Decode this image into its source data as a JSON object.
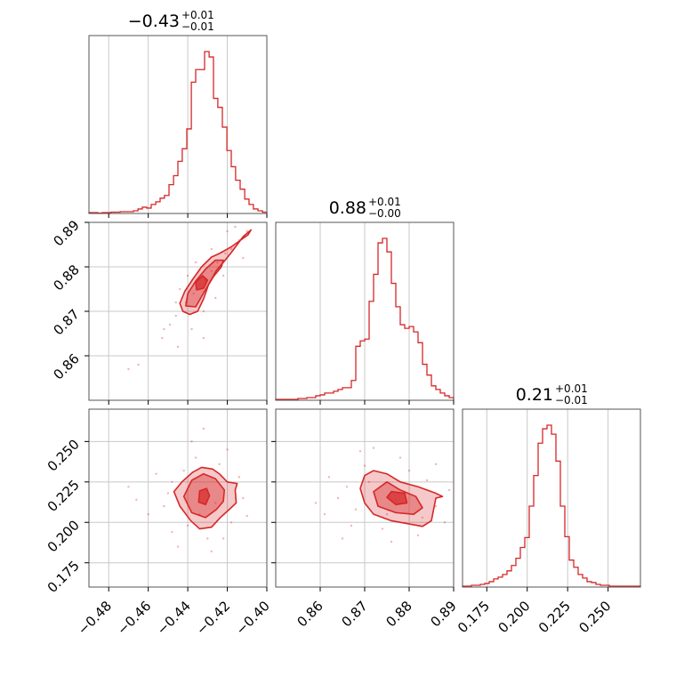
{
  "chart_data": {
    "type": "corner",
    "color": "#d62728",
    "grid": true,
    "parameters": [
      {
        "title_value": "−0.43",
        "title_plus": "+0.01",
        "title_minus": "−0.01",
        "range": [
          -0.49,
          -0.4
        ],
        "ticks": [
          -0.48,
          -0.46,
          -0.44,
          -0.42,
          -0.4
        ],
        "tick_labels": [
          "−0.48",
          "−0.46",
          "−0.44",
          "−0.42",
          "−0.40"
        ],
        "hist_edges": [
          -0.49,
          -0.4878,
          -0.4855,
          -0.4832,
          -0.481,
          -0.4788,
          -0.4765,
          -0.4742,
          -0.472,
          -0.4698,
          -0.4675,
          -0.4652,
          -0.463,
          -0.4608,
          -0.4585,
          -0.4562,
          -0.454,
          -0.4518,
          -0.4495,
          -0.4472,
          -0.445,
          -0.4428,
          -0.4405,
          -0.4382,
          -0.436,
          -0.4338,
          -0.4315,
          -0.4292,
          -0.427,
          -0.4248,
          -0.4225,
          -0.4202,
          -0.418,
          -0.4158,
          -0.4135,
          -0.4112,
          -0.409,
          -0.4068,
          -0.4045,
          -0.4022,
          -0.4
        ],
        "hist_counts": [
          1,
          1,
          0.5,
          1,
          1,
          1.5,
          1.5,
          2,
          2,
          2,
          3,
          5,
          7,
          6,
          10,
          13,
          17,
          20,
          32,
          42,
          58,
          72,
          94,
          146,
          160,
          160,
          180,
          174,
          128,
          118,
          96,
          70,
          52,
          37,
          27,
          16,
          10,
          5,
          3,
          1.5
        ]
      },
      {
        "title_value": "0.88",
        "title_plus": "+0.01",
        "title_minus": "−0.00",
        "range": [
          0.85,
          0.89
        ],
        "ticks": [
          0.86,
          0.87,
          0.88,
          0.89
        ],
        "tick_labels": [
          "0.86",
          "0.87",
          "0.88",
          "0.89"
        ],
        "hist_edges": [
          0.85,
          0.851,
          0.852,
          0.853,
          0.854,
          0.855,
          0.856,
          0.857,
          0.858,
          0.859,
          0.86,
          0.861,
          0.862,
          0.863,
          0.864,
          0.865,
          0.866,
          0.867,
          0.868,
          0.869,
          0.87,
          0.871,
          0.872,
          0.873,
          0.874,
          0.875,
          0.876,
          0.877,
          0.878,
          0.879,
          0.88,
          0.881,
          0.882,
          0.883,
          0.884,
          0.885,
          0.886,
          0.887,
          0.888,
          0.889,
          0.89
        ],
        "hist_counts": [
          1,
          1,
          1,
          1,
          1,
          2,
          2,
          3,
          3,
          5,
          6,
          8,
          8,
          10,
          12,
          14,
          14,
          22,
          60,
          66,
          68,
          110,
          140,
          175,
          180,
          165,
          130,
          104,
          84,
          80,
          82,
          76,
          64,
          40,
          28,
          16,
          12,
          8,
          5,
          3
        ]
      },
      {
        "title_value": "0.21",
        "title_plus": "+0.01",
        "title_minus": "−0.01",
        "range": [
          0.16,
          0.27
        ],
        "ticks": [
          0.175,
          0.2,
          0.225,
          0.25
        ],
        "tick_labels": [
          "0.175",
          "0.200",
          "0.225",
          "0.250"
        ],
        "hist_edges": [
          0.16,
          0.16275,
          0.1655,
          0.16825,
          0.171,
          0.17375,
          0.1765,
          0.17925,
          0.182,
          0.18475,
          0.1875,
          0.19025,
          0.193,
          0.19575,
          0.1985,
          0.20125,
          0.204,
          0.20675,
          0.2095,
          0.21225,
          0.215,
          0.21775,
          0.2205,
          0.22325,
          0.226,
          0.22875,
          0.2315,
          0.23425,
          0.237,
          0.23975,
          0.2425,
          0.24525,
          0.248,
          0.25075,
          0.2535,
          0.25625,
          0.259,
          0.26175,
          0.2645,
          0.26725,
          0.27
        ],
        "hist_counts": [
          1,
          1,
          2,
          2,
          3,
          4,
          6,
          9,
          11,
          14,
          18,
          24,
          32,
          44,
          55,
          90,
          124,
          160,
          176,
          180,
          170,
          140,
          90,
          56,
          30,
          22,
          14,
          10,
          6,
          5,
          3,
          2,
          2,
          1,
          1,
          1,
          1,
          1,
          1,
          1
        ]
      }
    ],
    "pairs": [
      {
        "x_param": 0,
        "y_param": 1,
        "contours": [
          [
            [
              -0.4425,
              0.87
            ],
            [
              -0.439,
              0.8693
            ],
            [
              -0.435,
              0.87
            ],
            [
              -0.432,
              0.8728
            ],
            [
              -0.4295,
              0.876
            ],
            [
              -0.4255,
              0.8792
            ],
            [
              -0.422,
              0.881
            ],
            [
              -0.418,
              0.8832
            ],
            [
              -0.412,
              0.8868
            ],
            [
              -0.408,
              0.8883
            ],
            [
              -0.4095,
              0.8872
            ],
            [
              -0.418,
              0.8845
            ],
            [
              -0.424,
              0.883
            ],
            [
              -0.428,
              0.8822
            ],
            [
              -0.433,
              0.88
            ],
            [
              -0.4375,
              0.8772
            ],
            [
              -0.4415,
              0.8745
            ],
            [
              -0.444,
              0.8718
            ]
          ],
          [
            [
              -0.441,
              0.8712
            ],
            [
              -0.436,
              0.871
            ],
            [
              -0.4315,
              0.8745
            ],
            [
              -0.427,
              0.8778
            ],
            [
              -0.423,
              0.88
            ],
            [
              -0.422,
              0.8815
            ],
            [
              -0.426,
              0.8815
            ],
            [
              -0.431,
              0.8795
            ],
            [
              -0.436,
              0.8768
            ],
            [
              -0.44,
              0.874
            ]
          ],
          [
            [
              -0.4355,
              0.8748
            ],
            [
              -0.432,
              0.8752
            ],
            [
              -0.43,
              0.877
            ],
            [
              -0.4325,
              0.878
            ],
            [
              -0.436,
              0.8765
            ]
          ]
        ],
        "points": [
          [
            -0.452,
            0.866
          ],
          [
            -0.449,
            0.867
          ],
          [
            -0.446,
            0.869
          ],
          [
            -0.441,
            0.872
          ],
          [
            -0.437,
            0.874
          ],
          [
            -0.434,
            0.876
          ],
          [
            -0.431,
            0.877
          ],
          [
            -0.428,
            0.879
          ],
          [
            -0.425,
            0.881
          ],
          [
            -0.421,
            0.883
          ],
          [
            -0.418,
            0.884
          ],
          [
            -0.414,
            0.886
          ],
          [
            -0.41,
            0.888
          ],
          [
            -0.445,
            0.862
          ],
          [
            -0.453,
            0.864
          ],
          [
            -0.465,
            0.858
          ],
          [
            -0.47,
            0.857
          ],
          [
            -0.44,
            0.878
          ],
          [
            -0.432,
            0.87
          ],
          [
            -0.426,
            0.873
          ],
          [
            -0.438,
            0.866
          ],
          [
            -0.42,
            0.888
          ],
          [
            -0.416,
            0.889
          ],
          [
            -0.436,
            0.881
          ],
          [
            -0.444,
            0.875
          ],
          [
            -0.428,
            0.884
          ],
          [
            -0.432,
            0.864
          ],
          [
            -0.422,
            0.878
          ],
          [
            -0.446,
            0.872
          ],
          [
            -0.412,
            0.882
          ]
        ]
      },
      {
        "x_param": 0,
        "y_param": 2,
        "contours": [
          [
            [
              -0.447,
              0.219
            ],
            [
              -0.444,
              0.21
            ],
            [
              -0.4385,
              0.201
            ],
            [
              -0.434,
              0.196
            ],
            [
              -0.428,
              0.197
            ],
            [
              -0.4235,
              0.203
            ],
            [
              -0.419,
              0.208
            ],
            [
              -0.4155,
              0.212
            ],
            [
              -0.416,
              0.22
            ],
            [
              -0.415,
              0.224
            ],
            [
              -0.42,
              0.225
            ],
            [
              -0.424,
              0.23
            ],
            [
              -0.4275,
              0.233
            ],
            [
              -0.433,
              0.234
            ],
            [
              -0.4375,
              0.231
            ],
            [
              -0.443,
              0.225
            ]
          ],
          [
            [
              -0.442,
              0.216
            ],
            [
              -0.438,
              0.206
            ],
            [
              -0.431,
              0.203
            ],
            [
              -0.4255,
              0.208
            ],
            [
              -0.422,
              0.213
            ],
            [
              -0.4215,
              0.22
            ],
            [
              -0.426,
              0.227
            ],
            [
              -0.432,
              0.23
            ],
            [
              -0.438,
              0.226
            ]
          ],
          [
            [
              -0.4345,
              0.2125
            ],
            [
              -0.431,
              0.211
            ],
            [
              -0.429,
              0.2165
            ],
            [
              -0.4305,
              0.221
            ],
            [
              -0.434,
              0.2195
            ]
          ]
        ],
        "points": [
          [
            -0.452,
            0.21
          ],
          [
            -0.448,
            0.225
          ],
          [
            -0.44,
            0.198
          ],
          [
            -0.436,
            0.24
          ],
          [
            -0.43,
            0.19
          ],
          [
            -0.424,
            0.236
          ],
          [
            -0.418,
            0.2
          ],
          [
            -0.412,
            0.215
          ],
          [
            -0.456,
            0.23
          ],
          [
            -0.46,
            0.205
          ],
          [
            -0.445,
            0.185
          ],
          [
            -0.42,
            0.245
          ],
          [
            -0.438,
            0.25
          ],
          [
            -0.428,
            0.182
          ],
          [
            -0.414,
            0.228
          ],
          [
            -0.45,
            0.218
          ],
          [
            -0.442,
            0.232
          ],
          [
            -0.434,
            0.205
          ],
          [
            -0.426,
            0.212
          ],
          [
            -0.466,
            0.214
          ],
          [
            -0.41,
            0.204
          ],
          [
            -0.47,
            0.222
          ],
          [
            -0.432,
            0.258
          ],
          [
            -0.448,
            0.194
          ],
          [
            -0.422,
            0.19
          ]
        ]
      },
      {
        "x_param": 1,
        "y_param": 2,
        "contours": [
          [
            [
              0.869,
              0.221
            ],
            [
              0.87,
              0.212
            ],
            [
              0.872,
              0.205
            ],
            [
              0.876,
              0.201
            ],
            [
              0.88,
              0.199
            ],
            [
              0.883,
              0.1975
            ],
            [
              0.885,
              0.201
            ],
            [
              0.8855,
              0.208
            ],
            [
              0.886,
              0.215
            ],
            [
              0.8875,
              0.216
            ],
            [
              0.886,
              0.218
            ],
            [
              0.882,
              0.222
            ],
            [
              0.878,
              0.225
            ],
            [
              0.875,
              0.23
            ],
            [
              0.872,
              0.232
            ],
            [
              0.87,
              0.229
            ]
          ],
          [
            [
              0.872,
              0.219
            ],
            [
              0.873,
              0.21
            ],
            [
              0.877,
              0.206
            ],
            [
              0.881,
              0.205
            ],
            [
              0.883,
              0.209
            ],
            [
              0.8815,
              0.216
            ],
            [
              0.878,
              0.22
            ],
            [
              0.875,
              0.225
            ]
          ],
          [
            [
              0.875,
              0.2155
            ],
            [
              0.877,
              0.211
            ],
            [
              0.8795,
              0.212
            ],
            [
              0.879,
              0.218
            ],
            [
              0.876,
              0.219
            ]
          ]
        ],
        "points": [
          [
            0.864,
            0.215
          ],
          [
            0.866,
            0.222
          ],
          [
            0.868,
            0.208
          ],
          [
            0.87,
            0.235
          ],
          [
            0.874,
            0.196
          ],
          [
            0.878,
            0.24
          ],
          [
            0.882,
            0.192
          ],
          [
            0.886,
            0.21
          ],
          [
            0.888,
            0.2
          ],
          [
            0.861,
            0.205
          ],
          [
            0.862,
            0.228
          ],
          [
            0.884,
            0.226
          ],
          [
            0.876,
            0.188
          ],
          [
            0.872,
            0.246
          ],
          [
            0.88,
            0.232
          ],
          [
            0.867,
            0.198
          ],
          [
            0.889,
            0.22
          ],
          [
            0.859,
            0.212
          ],
          [
            0.871,
            0.225
          ],
          [
            0.883,
            0.203
          ],
          [
            0.877,
            0.214
          ],
          [
            0.865,
            0.19
          ],
          [
            0.886,
            0.236
          ],
          [
            0.869,
            0.244
          ],
          [
            0.875,
            0.205
          ]
        ]
      }
    ]
  }
}
